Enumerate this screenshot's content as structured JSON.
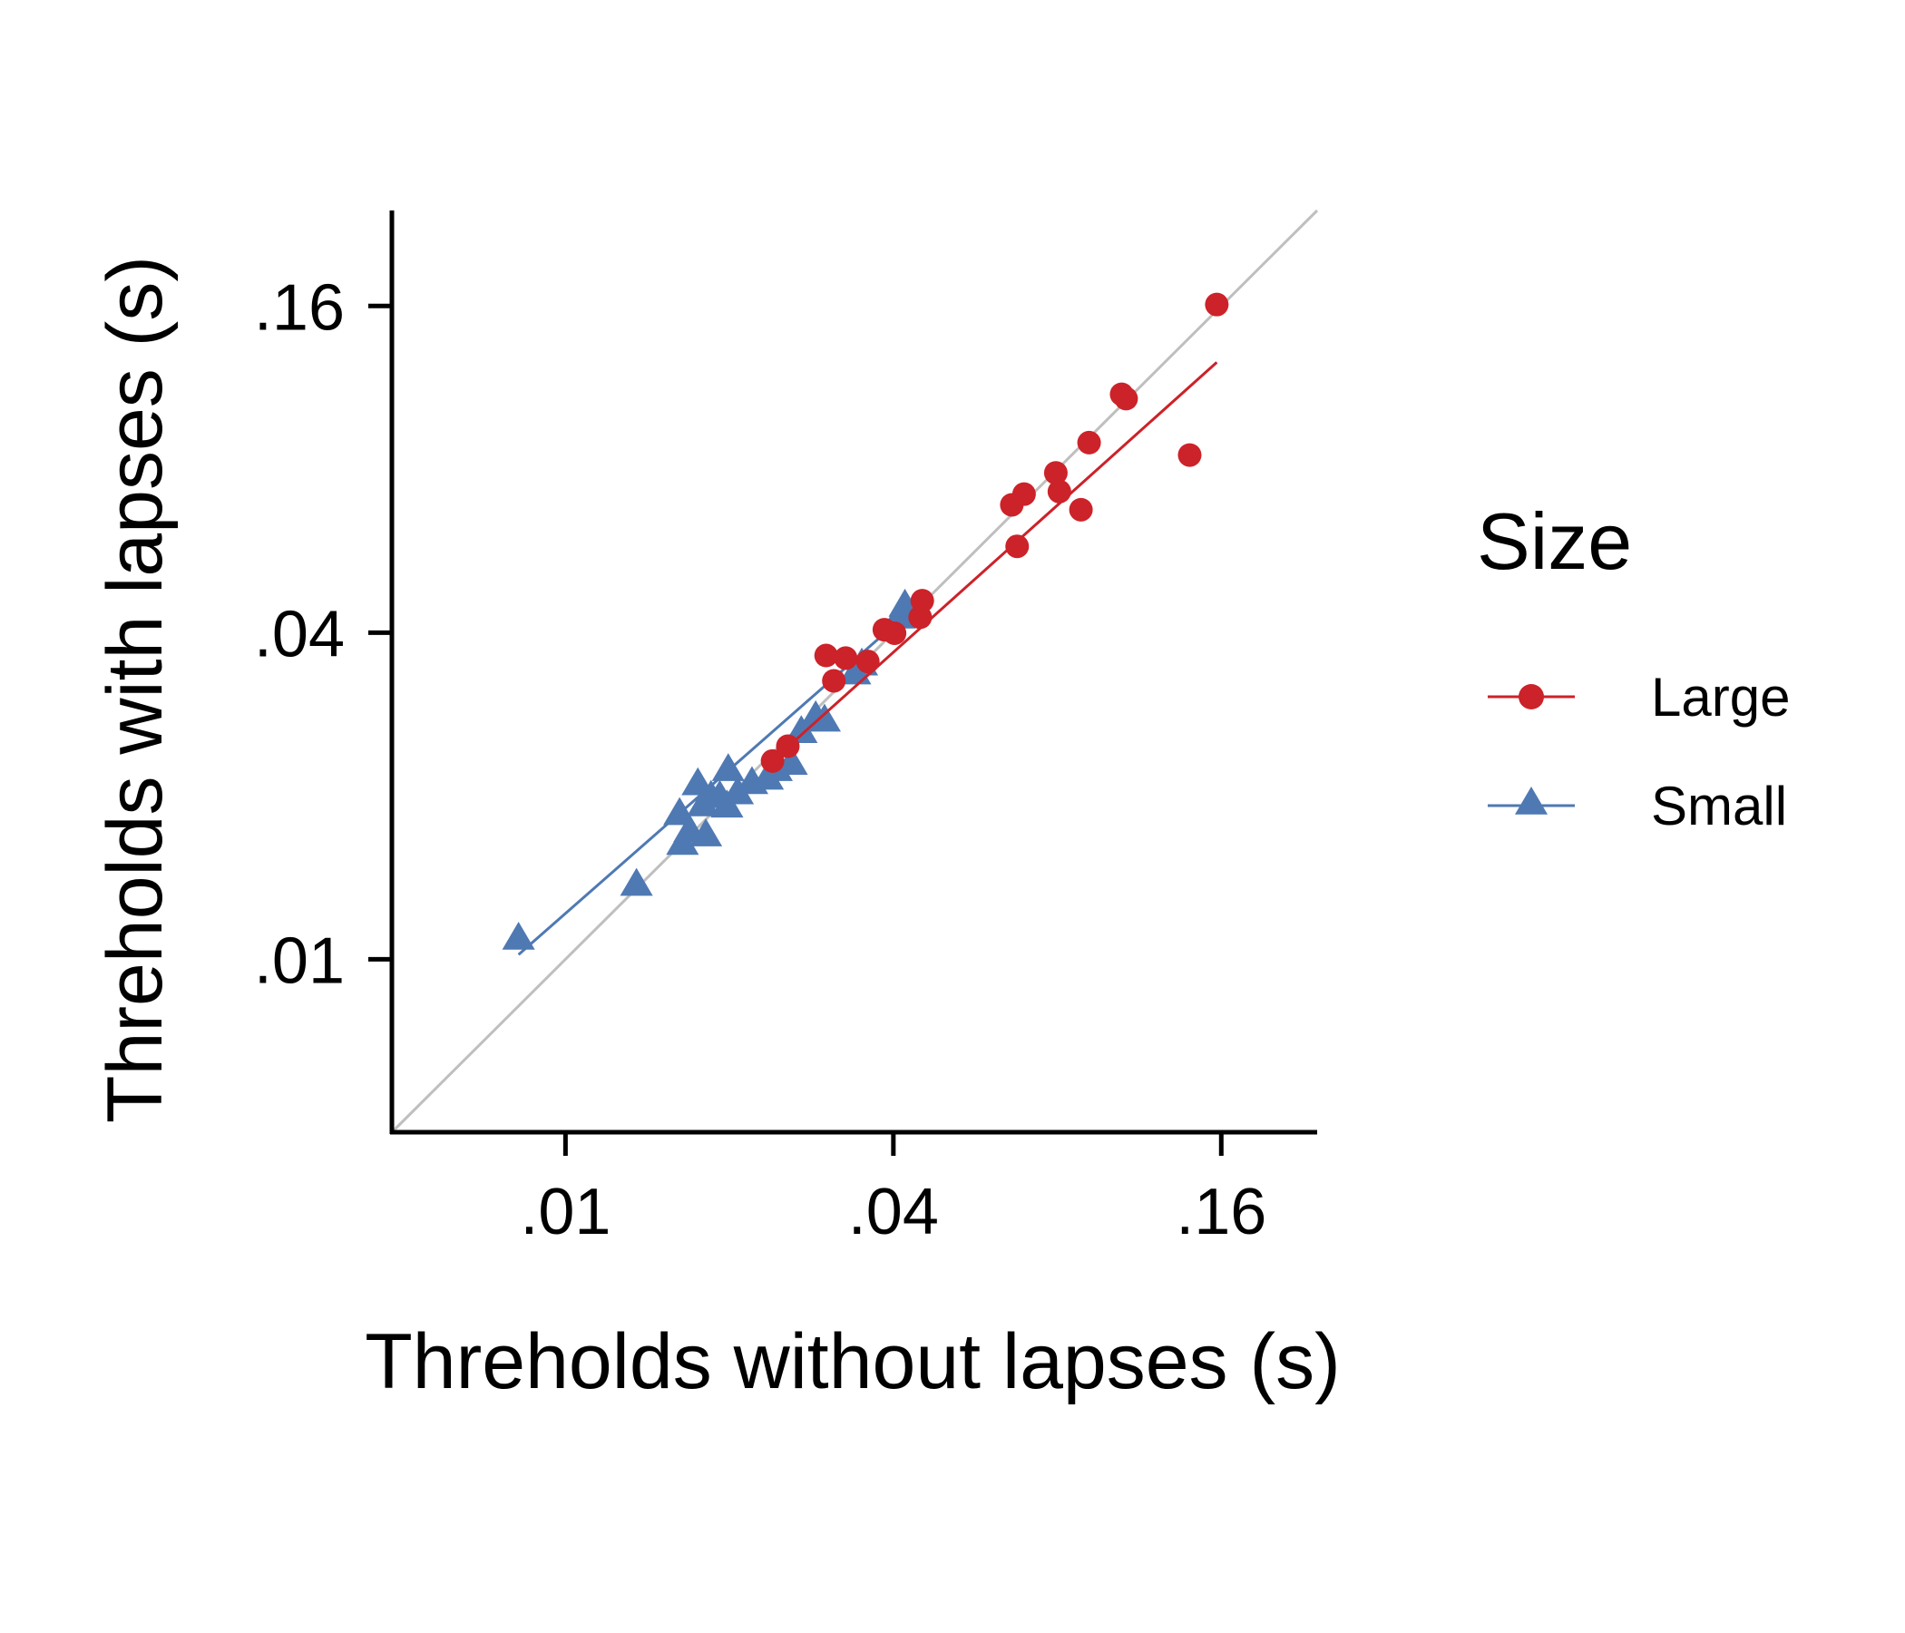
{
  "chart_data": {
    "type": "scatter",
    "xlabel": "Threholds without lapses (s)",
    "ylabel": "Threholds with lapses (s)",
    "x_scale": "log2",
    "y_scale": "log2",
    "xlim": [
      0.0048,
      0.24
    ],
    "ylim": [
      0.0048,
      0.24
    ],
    "x_ticks": [
      0.01,
      0.04,
      0.16
    ],
    "y_ticks": [
      0.01,
      0.04,
      0.16
    ],
    "x_tick_labels": [
      ".01",
      ".04",
      ".16"
    ],
    "y_tick_labels": [
      ".01",
      ".04",
      ".16"
    ],
    "grid": false,
    "identity_line": true,
    "identity_line_color": "#bfbfbf",
    "legend": {
      "title": "Size",
      "placement": "right"
    },
    "series": [
      {
        "name": "Large",
        "marker": "circle",
        "color": "#cc2229",
        "points": [
          [
            0.024,
            0.0232
          ],
          [
            0.0256,
            0.0247
          ],
          [
            0.0301,
            0.0363
          ],
          [
            0.0327,
            0.0359
          ],
          [
            0.0311,
            0.0326
          ],
          [
            0.0359,
            0.0354
          ],
          [
            0.0385,
            0.0405
          ],
          [
            0.0402,
            0.0399
          ],
          [
            0.0448,
            0.0427
          ],
          [
            0.0452,
            0.0458
          ],
          [
            0.066,
            0.0688
          ],
          [
            0.0695,
            0.072
          ],
          [
            0.0675,
            0.0577
          ],
          [
            0.0795,
            0.0788
          ],
          [
            0.0807,
            0.0728
          ],
          [
            0.0884,
            0.0674
          ],
          [
            0.0915,
            0.0896
          ],
          [
            0.105,
            0.11
          ],
          [
            0.107,
            0.108
          ],
          [
            0.14,
            0.085
          ],
          [
            0.157,
            0.161
          ]
        ],
        "fit_line": [
          [
            0.0235,
            0.0228
          ],
          [
            0.157,
            0.126
          ]
        ]
      },
      {
        "name": "Small",
        "marker": "triangle",
        "color": "#4f79b3",
        "points": [
          [
            0.0082,
            0.0109
          ],
          [
            0.0135,
            0.0137
          ],
          [
            0.0162,
            0.0185
          ],
          [
            0.0164,
            0.0163
          ],
          [
            0.0169,
            0.0172
          ],
          [
            0.0175,
            0.021
          ],
          [
            0.0179,
            0.0192
          ],
          [
            0.0181,
            0.0169
          ],
          [
            0.0185,
            0.0199
          ],
          [
            0.0192,
            0.0199
          ],
          [
            0.0198,
            0.0191
          ],
          [
            0.0199,
            0.0223
          ],
          [
            0.0207,
            0.0202
          ],
          [
            0.022,
            0.0211
          ],
          [
            0.0235,
            0.0215
          ],
          [
            0.0244,
            0.0223
          ],
          [
            0.026,
            0.0229
          ],
          [
            0.0271,
            0.0262
          ],
          [
            0.0288,
            0.0279
          ],
          [
            0.0299,
            0.0275
          ],
          [
            0.034,
            0.0336
          ],
          [
            0.035,
            0.0349
          ],
          [
            0.041,
            0.0426
          ],
          [
            0.042,
            0.0448
          ]
        ],
        "fit_line": [
          [
            0.0082,
            0.0102
          ],
          [
            0.042,
            0.043
          ]
        ]
      }
    ]
  }
}
